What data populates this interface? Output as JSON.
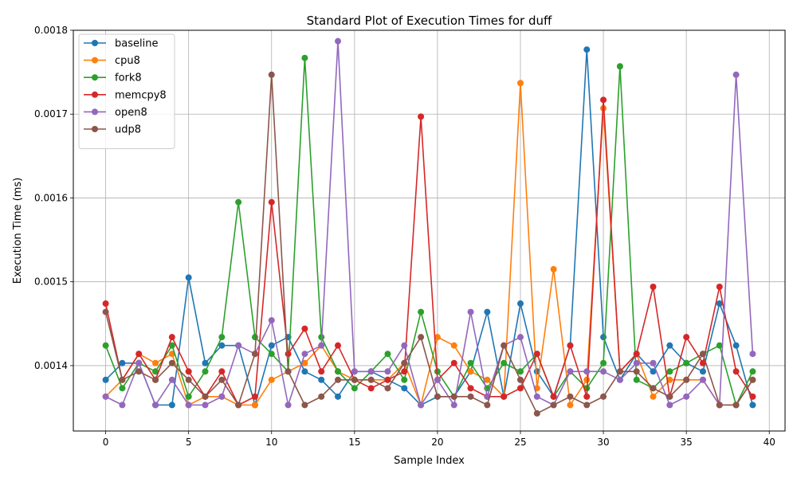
{
  "chart_data": {
    "type": "line",
    "title": "Standard Plot of Execution Times for duff",
    "xlabel": "Sample Index",
    "ylabel": "Execution Time (ms)",
    "xlim": [
      -1.95,
      40.95
    ],
    "ylim": [
      0.001322,
      0.0018
    ],
    "xticks": [
      0,
      5,
      10,
      15,
      20,
      25,
      30,
      35,
      40
    ],
    "yticks": [
      0.0014,
      0.0015,
      0.0016,
      0.0017,
      0.0018
    ],
    "grid": true,
    "legend_position": "top-left",
    "x": [
      0,
      1,
      2,
      3,
      4,
      5,
      6,
      7,
      8,
      9,
      10,
      11,
      12,
      13,
      14,
      15,
      16,
      17,
      18,
      19,
      20,
      21,
      22,
      23,
      24,
      25,
      26,
      27,
      28,
      29,
      30,
      31,
      32,
      33,
      34,
      35,
      36,
      37,
      38,
      39
    ],
    "series": [
      {
        "name": "baseline",
        "color": "#1f77b4",
        "values": [
          0.001383,
          0.001403,
          0.001403,
          0.001353,
          0.001353,
          0.001505,
          0.001403,
          0.001424,
          0.001424,
          0.001353,
          0.001424,
          0.001434,
          0.001393,
          0.001383,
          0.001363,
          0.001393,
          0.001393,
          0.001383,
          0.001373,
          0.001353,
          0.001363,
          0.001363,
          0.001393,
          0.001464,
          0.001363,
          0.001474,
          0.001393,
          0.001363,
          0.001424,
          0.001777,
          0.001434,
          0.001383,
          0.001414,
          0.001393,
          0.001424,
          0.001403,
          0.001393,
          0.001474,
          0.001424,
          0.001353
        ]
      },
      {
        "name": "cpu8",
        "color": "#ff7f0e",
        "values": [
          0.001363,
          0.001383,
          0.001414,
          0.001403,
          0.001414,
          0.001353,
          0.001363,
          0.001363,
          0.001353,
          0.001353,
          0.001383,
          0.001393,
          0.001403,
          0.001424,
          0.001393,
          0.001383,
          0.001383,
          0.001383,
          0.001403,
          0.001353,
          0.001434,
          0.001424,
          0.001393,
          0.001383,
          0.001363,
          0.001737,
          0.001373,
          0.001515,
          0.001353,
          0.001383,
          0.001707,
          0.001393,
          0.001414,
          0.001363,
          0.001383,
          0.001383,
          0.001383,
          0.001353,
          0.001353,
          0.001383
        ]
      },
      {
        "name": "fork8",
        "color": "#2ca02c",
        "values": [
          0.001424,
          0.001373,
          0.001403,
          0.001393,
          0.001424,
          0.001363,
          0.001393,
          0.001434,
          0.001595,
          0.001434,
          0.001414,
          0.001393,
          0.001767,
          0.001434,
          0.001393,
          0.001373,
          0.001393,
          0.001414,
          0.001383,
          0.001464,
          0.001393,
          0.001363,
          0.001403,
          0.001373,
          0.001403,
          0.001393,
          0.001414,
          0.001363,
          0.001393,
          0.001373,
          0.001403,
          0.001757,
          0.001383,
          0.001373,
          0.001393,
          0.001403,
          0.001414,
          0.001424,
          0.001353,
          0.001393
        ]
      },
      {
        "name": "memcpy8",
        "color": "#d62728",
        "values": [
          0.001474,
          0.001383,
          0.001414,
          0.001383,
          0.001434,
          0.001393,
          0.001363,
          0.001393,
          0.001353,
          0.001363,
          0.001595,
          0.001414,
          0.001444,
          0.001393,
          0.001424,
          0.001383,
          0.001373,
          0.001383,
          0.001393,
          0.001697,
          0.001383,
          0.001403,
          0.001373,
          0.001363,
          0.001363,
          0.001373,
          0.001414,
          0.001363,
          0.001424,
          0.001363,
          0.001717,
          0.001393,
          0.001414,
          0.001494,
          0.001363,
          0.001434,
          0.001403,
          0.001494,
          0.001393,
          0.001363
        ]
      },
      {
        "name": "open8",
        "color": "#9467bd",
        "values": [
          0.001363,
          0.001353,
          0.001403,
          0.001353,
          0.001383,
          0.001353,
          0.001353,
          0.001363,
          0.001424,
          0.001414,
          0.001454,
          0.001353,
          0.001414,
          0.001424,
          0.001787,
          0.001393,
          0.001393,
          0.001393,
          0.001424,
          0.001353,
          0.001383,
          0.001353,
          0.001464,
          0.001363,
          0.001424,
          0.001434,
          0.001363,
          0.001353,
          0.001393,
          0.001393,
          0.001393,
          0.001383,
          0.001403,
          0.001403,
          0.001353,
          0.001363,
          0.001383,
          0.001353,
          0.001747,
          0.001414
        ]
      },
      {
        "name": "udp8",
        "color": "#8c564b",
        "values": [
          0.001464,
          0.001383,
          0.001393,
          0.001383,
          0.001403,
          0.001383,
          0.001363,
          0.001383,
          0.001353,
          0.001414,
          0.001747,
          0.001393,
          0.001353,
          0.001363,
          0.001383,
          0.001383,
          0.001383,
          0.001373,
          0.001403,
          0.001434,
          0.001363,
          0.001363,
          0.001363,
          0.001353,
          0.001424,
          0.001383,
          0.001343,
          0.001353,
          0.001363,
          0.001353,
          0.001363,
          0.001393,
          0.001393,
          0.001373,
          0.001363,
          0.001383,
          0.001414,
          0.001353,
          0.001353,
          0.001383
        ]
      }
    ]
  }
}
